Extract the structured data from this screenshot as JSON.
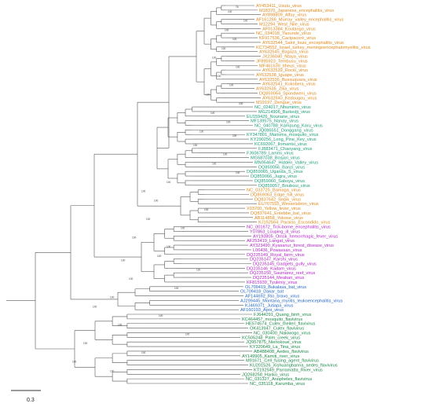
{
  "scale_bar": {
    "label": "0.3"
  },
  "colors": {
    "mosquito_borne": "#e08a1e",
    "no_known_vector": "#1ea07a",
    "tick_borne": "#b424c8",
    "no_vector_bat": "#2468c8",
    "insect_specific": "#1e8a4a",
    "branch": "#555555",
    "ghost": "#e6f1fa"
  },
  "taxa": [
    {
      "name": "AY453411_Usutu_virus",
      "group": "mosquito_borne"
    },
    {
      "name": "M18370_Japanese_encephalitis_virus",
      "group": "mosquito_borne"
    },
    {
      "name": "AY898809_Alfuy_virus",
      "group": "mosquito_borne"
    },
    {
      "name": "AF161266_Murray_valley_encephalitis_virus",
      "group": "mosquito_borne"
    },
    {
      "name": "M12294_West_Nile_virus",
      "group": "mosquito_borne"
    },
    {
      "name": "AF013384_Koutango_virus",
      "group": "mosquito_borne"
    },
    {
      "name": "NC_034018_Yaounde_virus",
      "group": "mosquito_borne"
    },
    {
      "name": "KF917536_Cacipacore_virus",
      "group": "mosquito_borne"
    },
    {
      "name": "AY632544_Saint_louis_encephalitis_virus",
      "group": "mosquito_borne"
    },
    {
      "name": "KC734552_Israel_turkey_meningoencephalomyelitis_virus",
      "group": "mosquito_borne"
    },
    {
      "name": "AY632545_Bagaza_virus",
      "group": "mosquito_borne"
    },
    {
      "name": "JX236040_Ntaya_virus",
      "group": "mosquito_borne"
    },
    {
      "name": "JF895923_Tembusu_virus",
      "group": "mosquito_borne"
    },
    {
      "name": "MF461639_Ilheus_virus",
      "group": "mosquito_borne"
    },
    {
      "name": "AY632539_Rocio_virus",
      "group": "mosquito_borne"
    },
    {
      "name": "AY632538_Iguape_virus",
      "group": "mosquito_borne"
    },
    {
      "name": "AY632536_Bussuquara_virus",
      "group": "mosquito_borne"
    },
    {
      "name": "AY632541_Kokobera_virus",
      "group": "mosquito_borne"
    },
    {
      "name": "AY632535_Zika_virus",
      "group": "mosquito_borne"
    },
    {
      "name": "DQ859064_Spondweni_virus",
      "group": "mosquito_borne"
    },
    {
      "name": "AY632540_Kedougou_virus",
      "group": "mosquito_borne"
    },
    {
      "name": "M19197_Dengue_virus",
      "group": "mosquito_borne"
    },
    {
      "name": "NC_024017_Nhumirim_virus",
      "group": "no_known_vector"
    },
    {
      "name": "MG214906_Barkedji_virus",
      "group": "no_known_vector"
    },
    {
      "name": "EU159426_Nounane_virus",
      "group": "no_known_vector"
    },
    {
      "name": "MF139575_Nanay_virus",
      "group": "no_known_vector"
    },
    {
      "name": "NC_040788_Kampung_Karu_virus",
      "group": "no_known_vector"
    },
    {
      "name": "JQ086551_Donggang_virus",
      "group": "no_known_vector"
    },
    {
      "name": "KY347801_Marisma_mosquito_virus",
      "group": "no_known_vector"
    },
    {
      "name": "KY290256_Long_Pine_Key_virus",
      "group": "no_known_vector"
    },
    {
      "name": "KC692067_Ilomantsi_virus",
      "group": "no_known_vector"
    },
    {
      "name": "FJ883471_Chaoyang_virus",
      "group": "no_known_vector"
    },
    {
      "name": "FJ606789_Lammi_virus",
      "group": "no_known_vector"
    },
    {
      "name": "MG587038_Bosjari_virus",
      "group": "no_known_vector"
    },
    {
      "name": "MN954647_Hidden_Valley_virus",
      "group": "no_known_vector"
    },
    {
      "name": "DQ859056_Banzi_virus",
      "group": "no_known_vector"
    },
    {
      "name": "DQ859065_Uganda_S_virus",
      "group": "no_known_vector"
    },
    {
      "name": "DQ859066_Jugra_virus",
      "group": "no_known_vector"
    },
    {
      "name": "DQ859060_Saboya_virus",
      "group": "no_known_vector"
    },
    {
      "name": "DQ859057_Bouboui_virus",
      "group": "no_known_vector"
    },
    {
      "name": "NC_033725_Bamaga_virus",
      "group": "mosquito_borne"
    },
    {
      "name": "DQ859063_Edge_hill_virus",
      "group": "mosquito_borne"
    },
    {
      "name": "DQ837642_Sepik_virus",
      "group": "mosquito_borne"
    },
    {
      "name": "EU707555_Wesselsbron_virus",
      "group": "mosquito_borne"
    },
    {
      "name": "X03700_Yellow_fever_virus",
      "group": "mosquito_borne"
    },
    {
      "name": "DQ837641_Entebbe_bat_virus",
      "group": "mosquito_borne"
    },
    {
      "name": "AB114858_Yokose_virus",
      "group": "mosquito_borne"
    },
    {
      "name": "KJ152564_Paraiso_Escondido_virus",
      "group": "mosquito_borne"
    },
    {
      "name": "NC_001672_Tick-borne_encephalitis_virus",
      "group": "tick_borne"
    },
    {
      "name": "Y07863_Louping_ill_virus",
      "group": "tick_borne"
    },
    {
      "name": "AY193805_Omsk_hemorrhagic_fever_virus",
      "group": "tick_borne"
    },
    {
      "name": "AF253419_Langat_virus",
      "group": "tick_borne"
    },
    {
      "name": "AY323490_Kyasanur_forest_disease_virus",
      "group": "tick_borne"
    },
    {
      "name": "L06436_Powassan_virus",
      "group": "tick_borne"
    },
    {
      "name": "DQ235149_Royal_farm_virus",
      "group": "tick_borne"
    },
    {
      "name": "DQ235147_Karshi_virus",
      "group": "tick_borne"
    },
    {
      "name": "DQ235145_Gadgets_gully_virus",
      "group": "tick_borne"
    },
    {
      "name": "DQ235146_Kadam_virus",
      "group": "tick_borne"
    },
    {
      "name": "DQ235150_Saumarez_reef_virus",
      "group": "tick_borne"
    },
    {
      "name": "DQ235144_Meaban_virus",
      "group": "tick_borne"
    },
    {
      "name": "KF815939_Tyuleniy_virus",
      "group": "tick_borne"
    },
    {
      "name": "OL709419_Bukalasa_bat_virus",
      "group": "no_vector_bat"
    },
    {
      "name": "OL709418_Dakar_bat",
      "group": "no_vector_bat"
    },
    {
      "name": "AF144692_Rio_bravo_virus",
      "group": "no_vector_bat"
    },
    {
      "name": "AJ299445_Montana_myotis_leukoencephalitis_virus",
      "group": "no_vector_bat"
    },
    {
      "name": "KJ469371_Jutiapa_virus",
      "group": "no_vector_bat"
    },
    {
      "name": "AF160193_Apoi_virus",
      "group": "no_vector_bat"
    },
    {
      "name": "FJ644291_Quang_binh_virus",
      "group": "insect_specific"
    },
    {
      "name": "KC464457_mosquito_flavivirus",
      "group": "insect_specific"
    },
    {
      "name": "HE574574_Culex_theileri_flavivirus",
      "group": "insect_specific"
    },
    {
      "name": "OK413947_Culex_flavivirus",
      "group": "insect_specific"
    },
    {
      "name": "NC_030400_Nakiwogo_virus",
      "group": "insect_specific"
    },
    {
      "name": "KC505248_Palm_creek_virus",
      "group": "insect_specific"
    },
    {
      "name": "JQ957875_Nienokoue_virus",
      "group": "insect_specific"
    },
    {
      "name": "KY320649_La_Tina_virus",
      "group": "insect_specific"
    },
    {
      "name": "AB488408_Aedes_flavivirus",
      "group": "insect_specific"
    },
    {
      "name": "AY149905_Kamiti_river_virus",
      "group": "insect_specific"
    },
    {
      "name": "M91671_Cell_fusing_agent_flavivirus",
      "group": "insect_specific"
    },
    {
      "name": "KU201526_Xishuangbanna_aedes_flavivirus",
      "group": "insect_specific"
    },
    {
      "name": "KT192549_Parramatta_River_virus",
      "group": "insect_specific"
    },
    {
      "name": "JQ268258_Hanko_virus",
      "group": "insect_specific"
    },
    {
      "name": "NC_031327_Anopheles_flavivirus",
      "group": "insect_specific"
    },
    {
      "name": "NC_035118_Karumba_virus",
      "group": "insect_specific"
    }
  ],
  "bootstrap_labels": [
    "76",
    "100",
    "100",
    "100",
    "100",
    "100",
    "100",
    "100",
    "100",
    "100",
    "100",
    "100",
    "100",
    "100",
    "100",
    "100",
    "100",
    "100",
    "100",
    "100",
    "100",
    "100",
    "100",
    "100",
    "100",
    "100",
    "100",
    "100",
    "100",
    "100",
    "100",
    "100",
    "100",
    "100",
    "100",
    "100",
    "100",
    "100",
    "100",
    "100",
    "100",
    "100"
  ]
}
